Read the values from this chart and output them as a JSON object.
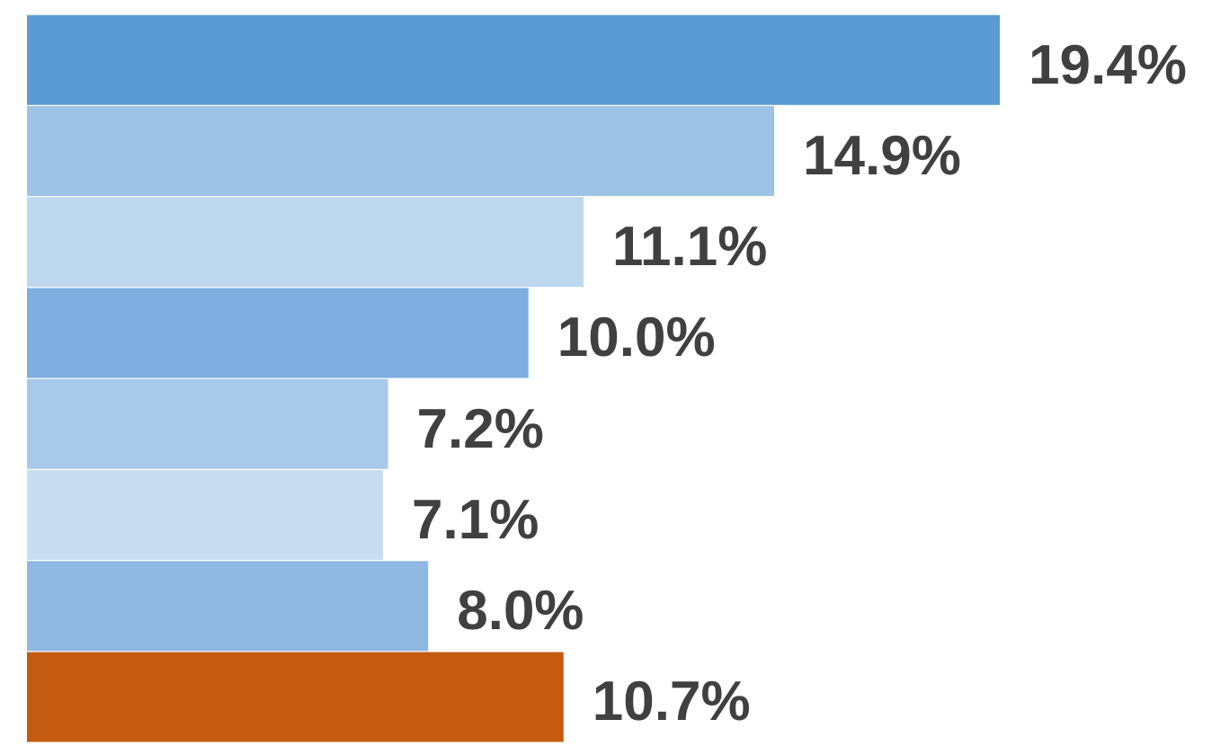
{
  "chart_data": {
    "type": "bar",
    "orientation": "horizontal",
    "categories": [
      null,
      null,
      null,
      null,
      null,
      null,
      null,
      null
    ],
    "values": [
      19.4,
      14.9,
      11.1,
      10.0,
      7.2,
      7.1,
      8.0,
      10.7
    ],
    "value_labels": [
      "19.4%",
      "14.9%",
      "11.1%",
      "10.0%",
      "7.2%",
      "7.1%",
      "8.0%",
      "10.7%"
    ],
    "colors": [
      "#5b9bd5",
      "#9dc3e6",
      "#bdd7ee",
      "#7eaee0",
      "#a9c9ea",
      "#c9ddf2",
      "#8fb8e3",
      "#c55a11"
    ]
  }
}
